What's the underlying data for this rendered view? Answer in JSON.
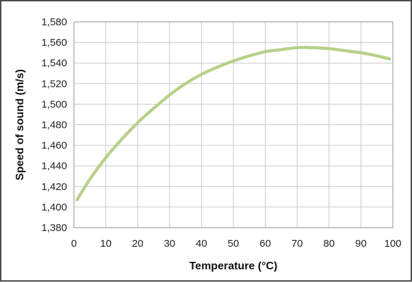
{
  "chart_data": {
    "type": "line",
    "title": "",
    "xlabel": "Temperature (°C)",
    "ylabel": "Speed of sound (m/s)",
    "xlim": [
      0,
      100
    ],
    "ylim": [
      1380,
      1580
    ],
    "x_ticks": [
      0,
      10,
      20,
      30,
      40,
      50,
      60,
      70,
      80,
      90,
      100
    ],
    "y_ticks": [
      1380,
      1400,
      1420,
      1440,
      1460,
      1480,
      1500,
      1520,
      1540,
      1560,
      1580
    ],
    "x_tick_labels": [
      "0",
      "10",
      "20",
      "30",
      "40",
      "50",
      "60",
      "70",
      "80",
      "90",
      "100"
    ],
    "y_tick_labels": [
      "1,380",
      "1,400",
      "1,420",
      "1,440",
      "1,460",
      "1,480",
      "1,500",
      "1,520",
      "1,540",
      "1,560",
      "1,580"
    ],
    "grid": true,
    "legend": "none",
    "line_color": "#b8d18a",
    "series": [
      {
        "x": [
          1,
          5,
          10,
          15,
          20,
          25,
          30,
          35,
          40,
          45,
          50,
          55,
          60,
          65,
          70,
          74,
          80,
          85,
          90,
          95,
          99
        ],
        "values": [
          1407,
          1427,
          1448,
          1466,
          1482,
          1496,
          1509,
          1520,
          1529,
          1536,
          1542,
          1547,
          1551,
          1553,
          1555,
          1555,
          1554,
          1552,
          1550,
          1547,
          1544
        ]
      }
    ]
  }
}
